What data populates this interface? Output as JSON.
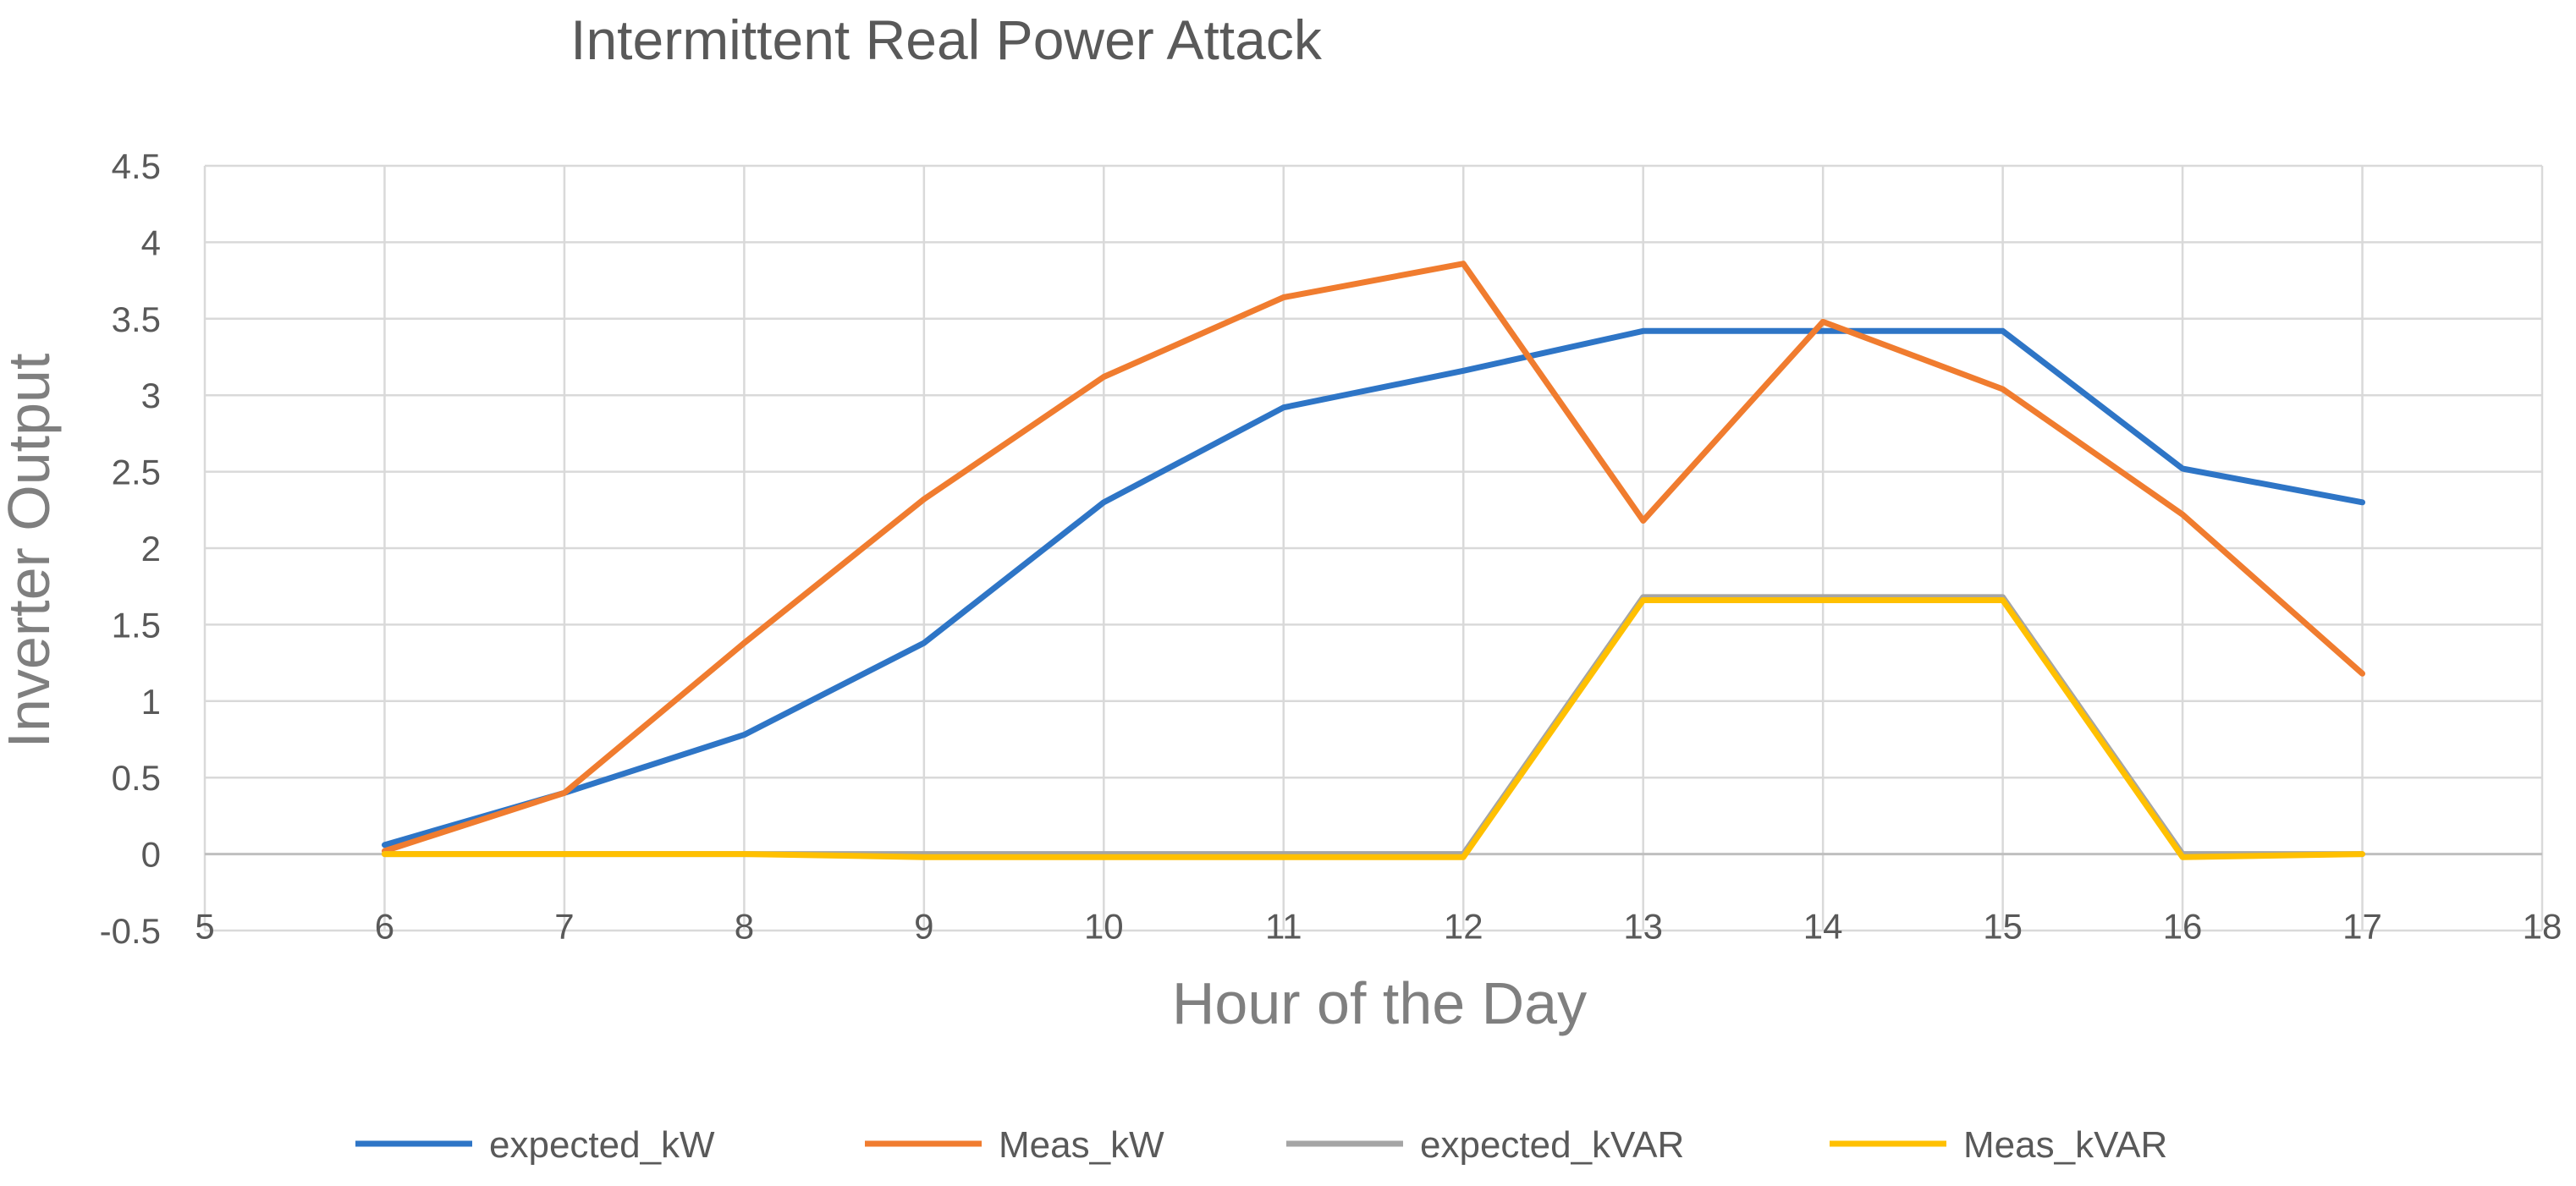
{
  "chart_data": {
    "type": "line",
    "title": "Intermittent Real Power Attack",
    "xlabel": "Hour of the Day",
    "ylabel": "Inverter Output",
    "xlim": [
      5,
      18
    ],
    "ylim": [
      -0.5,
      4.5
    ],
    "xticks": [
      5,
      6,
      7,
      8,
      9,
      10,
      11,
      12,
      13,
      14,
      15,
      16,
      17,
      18
    ],
    "yticks": [
      -0.5,
      0,
      0.5,
      1,
      1.5,
      2,
      2.5,
      3,
      3.5,
      4,
      4.5
    ],
    "grid": true,
    "legend_position": "bottom",
    "x": [
      6,
      7,
      8,
      9,
      10,
      11,
      12,
      13,
      14,
      15,
      16,
      17
    ],
    "series": [
      {
        "name": "expected_kW",
        "color": "#2e75c6",
        "values": [
          0.06,
          0.4,
          0.78,
          1.38,
          2.3,
          2.92,
          3.16,
          3.42,
          3.42,
          3.42,
          2.52,
          2.3
        ]
      },
      {
        "name": "Meas_kW",
        "color": "#f07c2f",
        "values": [
          0.02,
          0.4,
          1.38,
          2.32,
          3.12,
          3.64,
          3.86,
          2.18,
          3.48,
          3.04,
          2.22,
          1.18
        ]
      },
      {
        "name": "expected_kVAR",
        "color": "#a5a5a5",
        "values": [
          0.0,
          0.0,
          0.0,
          0.0,
          0.0,
          0.0,
          0.0,
          1.68,
          1.68,
          1.68,
          0.0,
          0.0
        ]
      },
      {
        "name": "Meas_kVAR",
        "color": "#ffc000",
        "values": [
          0.0,
          0.0,
          0.0,
          -0.02,
          -0.02,
          -0.02,
          -0.02,
          1.66,
          1.66,
          1.66,
          -0.02,
          0.0
        ]
      }
    ]
  }
}
